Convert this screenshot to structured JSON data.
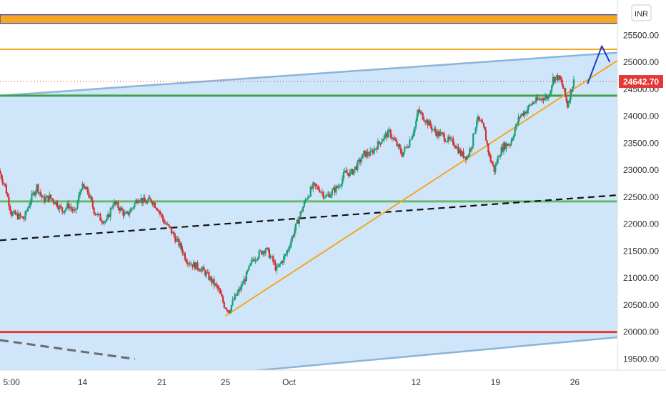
{
  "chart_data": {
    "type": "candlestick",
    "currency_label": "INR",
    "y_ticks": [
      "25500.00",
      "25000.00",
      "24500.00",
      "24000.00",
      "23500.00",
      "23000.00",
      "22500.00",
      "22000.00",
      "21500.00",
      "21000.00",
      "20500.00",
      "20000.00",
      "19500.00"
    ],
    "y_range": [
      19400,
      26100
    ],
    "x_ticks": [
      {
        "label": "5:00",
        "t": 0
      },
      {
        "label": "14",
        "t": 5
      },
      {
        "label": "21",
        "t": 10
      },
      {
        "label": "25",
        "t": 14
      },
      {
        "label": "Oct",
        "t": 18
      },
      {
        "label": "12",
        "t": 26
      },
      {
        "label": "19",
        "t": 31
      },
      {
        "label": "26",
        "t": 36
      }
    ],
    "t_range": [
      -0.2,
      37.6
    ],
    "current_price": {
      "label": "24642.70",
      "value": 24642.7
    },
    "price_series": [
      [
        -0.2,
        23000
      ],
      [
        0.2,
        22700
      ],
      [
        0.6,
        22200
      ],
      [
        1.0,
        22150
      ],
      [
        1.4,
        22100
      ],
      [
        1.8,
        22450
      ],
      [
        2.2,
        22700
      ],
      [
        2.6,
        22450
      ],
      [
        3.0,
        22500
      ],
      [
        3.4,
        22400
      ],
      [
        3.8,
        22250
      ],
      [
        4.2,
        22350
      ],
      [
        4.6,
        22200
      ],
      [
        5.0,
        22700
      ],
      [
        5.4,
        22600
      ],
      [
        5.8,
        22250
      ],
      [
        6.2,
        22100
      ],
      [
        6.6,
        22050
      ],
      [
        7.0,
        22400
      ],
      [
        7.4,
        22300
      ],
      [
        7.8,
        22150
      ],
      [
        8.2,
        22300
      ],
      [
        8.6,
        22500
      ],
      [
        9.0,
        22400
      ],
      [
        9.4,
        22450
      ],
      [
        9.8,
        22300
      ],
      [
        10.2,
        22050
      ],
      [
        10.6,
        21900
      ],
      [
        11.0,
        21700
      ],
      [
        11.3,
        21550
      ],
      [
        11.6,
        21350
      ],
      [
        12.0,
        21250
      ],
      [
        12.4,
        21200
      ],
      [
        12.8,
        21100
      ],
      [
        13.2,
        20950
      ],
      [
        13.6,
        20800
      ],
      [
        14.0,
        20500
      ],
      [
        14.3,
        20400
      ],
      [
        14.6,
        20600
      ],
      [
        15.0,
        20800
      ],
      [
        15.4,
        21050
      ],
      [
        15.8,
        21350
      ],
      [
        16.2,
        21450
      ],
      [
        16.6,
        21550
      ],
      [
        17.0,
        21350
      ],
      [
        17.3,
        21150
      ],
      [
        17.6,
        21300
      ],
      [
        17.9,
        21450
      ],
      [
        18.2,
        21700
      ],
      [
        18.5,
        21950
      ],
      [
        18.8,
        22200
      ],
      [
        19.2,
        22500
      ],
      [
        19.6,
        22700
      ],
      [
        20.0,
        22650
      ],
      [
        20.4,
        22500
      ],
      [
        20.8,
        22600
      ],
      [
        21.2,
        22700
      ],
      [
        21.6,
        22950
      ],
      [
        22.0,
        22950
      ],
      [
        22.4,
        23100
      ],
      [
        22.8,
        23300
      ],
      [
        23.2,
        23300
      ],
      [
        23.6,
        23450
      ],
      [
        24.0,
        23600
      ],
      [
        24.4,
        23700
      ],
      [
        24.8,
        23500
      ],
      [
        25.2,
        23300
      ],
      [
        25.6,
        23500
      ],
      [
        26.0,
        23800
      ],
      [
        26.2,
        24100
      ],
      [
        26.5,
        24000
      ],
      [
        26.9,
        23850
      ],
      [
        27.3,
        23700
      ],
      [
        27.7,
        23650
      ],
      [
        28.1,
        23550
      ],
      [
        28.5,
        23500
      ],
      [
        28.9,
        23300
      ],
      [
        29.3,
        23250
      ],
      [
        29.6,
        23500
      ],
      [
        29.9,
        23950
      ],
      [
        30.2,
        23850
      ],
      [
        30.4,
        23700
      ],
      [
        30.7,
        23250
      ],
      [
        31.0,
        23000
      ],
      [
        31.3,
        23300
      ],
      [
        31.6,
        23450
      ],
      [
        32.0,
        23500
      ],
      [
        32.3,
        23750
      ],
      [
        32.6,
        24000
      ],
      [
        33.0,
        24100
      ],
      [
        33.4,
        24250
      ],
      [
        33.8,
        24300
      ],
      [
        34.1,
        24350
      ],
      [
        34.4,
        24350
      ],
      [
        34.7,
        24700
      ],
      [
        35.0,
        24720
      ],
      [
        35.2,
        24640
      ],
      [
        35.4,
        24450
      ],
      [
        35.6,
        24200
      ],
      [
        35.8,
        24450
      ],
      [
        36.0,
        24642.7
      ]
    ],
    "horizontal_levels": [
      {
        "name": "orange band",
        "from": 25720,
        "to": 25880,
        "color": "#f5a623"
      },
      {
        "name": "orange line",
        "value": 25240,
        "color": "#f5a623"
      },
      {
        "name": "green line upper",
        "value": 24380,
        "color": "#43a047"
      },
      {
        "name": "green line lower",
        "value": 22420,
        "color": "#66bb6a"
      },
      {
        "name": "red line",
        "value": 20000,
        "color": "#e53935"
      }
    ],
    "channel": {
      "upper": [
        [
          -0.2,
          24380
        ],
        [
          39.3,
          25190
        ]
      ],
      "lower": [
        [
          -0.2,
          18850
        ],
        [
          39.3,
          19920
        ]
      ],
      "fill": "#cfe6fa"
    },
    "trendline": {
      "points": [
        [
          14.0,
          20300
        ],
        [
          39.3,
          25150
        ]
      ],
      "color": "#f5a623"
    },
    "dashed_black": {
      "points": [
        [
          -0.2,
          21700
        ],
        [
          39.3,
          22550
        ]
      ]
    },
    "dashed_gray": {
      "points": [
        [
          -0.2,
          19850
        ],
        [
          8.3,
          19500
        ]
      ]
    },
    "arrows": [
      {
        "points": [
          [
            36.8,
            24600
          ],
          [
            37.7,
            25300
          ],
          [
            38.2,
            25000
          ]
        ]
      },
      {
        "points": [
          [
            39.0,
            25300
          ],
          [
            39.8,
            25900
          ],
          [
            40.2,
            25700
          ]
        ]
      }
    ],
    "colors": {
      "up": "#1b9e77",
      "down": "#d32f2f",
      "arrow": "#1a3cc7",
      "price_label": "#e53935",
      "channel_line": "#8ab4d8",
      "band_border": "#2b3aa0"
    }
  }
}
